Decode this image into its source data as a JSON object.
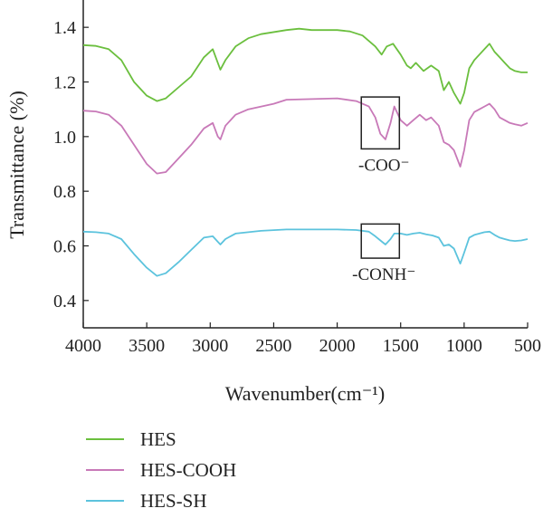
{
  "chart_data": {
    "type": "line",
    "title": "",
    "xlabel": "Wavenumber(cm⁻¹)",
    "ylabel": "Transmittance (%)",
    "xlim": [
      4000,
      500
    ],
    "ylim": [
      0.3,
      1.5
    ],
    "x_ticks": [
      4000,
      3500,
      3000,
      2500,
      2000,
      1500,
      1000,
      500
    ],
    "x_tick_labels": [
      "4000",
      "3500",
      "3000",
      "2500",
      "2000",
      "1500",
      "1000",
      "500"
    ],
    "y_ticks": [
      0.4,
      0.6,
      0.8,
      1.0,
      1.2,
      1.4
    ],
    "y_tick_labels": [
      "0.4",
      "0.6",
      "0.8",
      "1.0",
      "1.2",
      "1.4"
    ],
    "grid": false,
    "legend_position": "bottom-left",
    "series": [
      {
        "name": "HES",
        "color": "#6bbf3e",
        "points": [
          [
            4000,
            1.335
          ],
          [
            3900,
            1.332
          ],
          [
            3800,
            1.32
          ],
          [
            3700,
            1.28
          ],
          [
            3600,
            1.2
          ],
          [
            3500,
            1.15
          ],
          [
            3420,
            1.13
          ],
          [
            3350,
            1.14
          ],
          [
            3250,
            1.18
          ],
          [
            3150,
            1.22
          ],
          [
            3050,
            1.29
          ],
          [
            2980,
            1.32
          ],
          [
            2940,
            1.27
          ],
          [
            2920,
            1.245
          ],
          [
            2880,
            1.28
          ],
          [
            2800,
            1.33
          ],
          [
            2700,
            1.36
          ],
          [
            2600,
            1.375
          ],
          [
            2400,
            1.39
          ],
          [
            2300,
            1.395
          ],
          [
            2200,
            1.39
          ],
          [
            2000,
            1.39
          ],
          [
            1900,
            1.385
          ],
          [
            1800,
            1.37
          ],
          [
            1700,
            1.33
          ],
          [
            1650,
            1.3
          ],
          [
            1610,
            1.33
          ],
          [
            1560,
            1.34
          ],
          [
            1500,
            1.3
          ],
          [
            1450,
            1.26
          ],
          [
            1420,
            1.25
          ],
          [
            1380,
            1.27
          ],
          [
            1320,
            1.24
          ],
          [
            1260,
            1.26
          ],
          [
            1200,
            1.24
          ],
          [
            1160,
            1.17
          ],
          [
            1120,
            1.2
          ],
          [
            1080,
            1.16
          ],
          [
            1030,
            1.12
          ],
          [
            1000,
            1.16
          ],
          [
            960,
            1.25
          ],
          [
            920,
            1.28
          ],
          [
            880,
            1.3
          ],
          [
            840,
            1.32
          ],
          [
            800,
            1.34
          ],
          [
            760,
            1.31
          ],
          [
            720,
            1.29
          ],
          [
            680,
            1.27
          ],
          [
            640,
            1.25
          ],
          [
            600,
            1.24
          ],
          [
            550,
            1.235
          ],
          [
            500,
            1.235
          ]
        ]
      },
      {
        "name": "HES-COOH",
        "color": "#c879b8",
        "points": [
          [
            4000,
            1.095
          ],
          [
            3900,
            1.092
          ],
          [
            3800,
            1.08
          ],
          [
            3700,
            1.04
          ],
          [
            3600,
            0.97
          ],
          [
            3500,
            0.9
          ],
          [
            3420,
            0.865
          ],
          [
            3350,
            0.87
          ],
          [
            3250,
            0.92
          ],
          [
            3150,
            0.97
          ],
          [
            3050,
            1.03
          ],
          [
            2980,
            1.05
          ],
          [
            2940,
            1.0
          ],
          [
            2920,
            0.99
          ],
          [
            2880,
            1.04
          ],
          [
            2800,
            1.08
          ],
          [
            2700,
            1.1
          ],
          [
            2500,
            1.12
          ],
          [
            2400,
            1.135
          ],
          [
            2000,
            1.14
          ],
          [
            1850,
            1.13
          ],
          [
            1750,
            1.11
          ],
          [
            1700,
            1.07
          ],
          [
            1660,
            1.01
          ],
          [
            1620,
            0.99
          ],
          [
            1580,
            1.05
          ],
          [
            1550,
            1.11
          ],
          [
            1500,
            1.06
          ],
          [
            1450,
            1.04
          ],
          [
            1400,
            1.06
          ],
          [
            1350,
            1.08
          ],
          [
            1300,
            1.06
          ],
          [
            1260,
            1.07
          ],
          [
            1200,
            1.04
          ],
          [
            1160,
            0.98
          ],
          [
            1120,
            0.97
          ],
          [
            1080,
            0.95
          ],
          [
            1030,
            0.89
          ],
          [
            1000,
            0.95
          ],
          [
            960,
            1.06
          ],
          [
            920,
            1.09
          ],
          [
            880,
            1.1
          ],
          [
            840,
            1.11
          ],
          [
            800,
            1.12
          ],
          [
            760,
            1.1
          ],
          [
            720,
            1.07
          ],
          [
            680,
            1.06
          ],
          [
            640,
            1.05
          ],
          [
            600,
            1.045
          ],
          [
            550,
            1.04
          ],
          [
            500,
            1.05
          ]
        ]
      },
      {
        "name": "HES-SH",
        "color": "#5cc3dd",
        "points": [
          [
            4000,
            0.652
          ],
          [
            3900,
            0.65
          ],
          [
            3800,
            0.645
          ],
          [
            3700,
            0.625
          ],
          [
            3600,
            0.57
          ],
          [
            3500,
            0.52
          ],
          [
            3420,
            0.49
          ],
          [
            3350,
            0.5
          ],
          [
            3250,
            0.54
          ],
          [
            3150,
            0.585
          ],
          [
            3050,
            0.63
          ],
          [
            2980,
            0.635
          ],
          [
            2940,
            0.615
          ],
          [
            2920,
            0.605
          ],
          [
            2880,
            0.625
          ],
          [
            2800,
            0.645
          ],
          [
            2600,
            0.655
          ],
          [
            2400,
            0.66
          ],
          [
            2000,
            0.66
          ],
          [
            1850,
            0.658
          ],
          [
            1750,
            0.652
          ],
          [
            1700,
            0.635
          ],
          [
            1660,
            0.62
          ],
          [
            1620,
            0.605
          ],
          [
            1580,
            0.625
          ],
          [
            1550,
            0.645
          ],
          [
            1500,
            0.645
          ],
          [
            1450,
            0.64
          ],
          [
            1400,
            0.645
          ],
          [
            1350,
            0.648
          ],
          [
            1300,
            0.642
          ],
          [
            1250,
            0.638
          ],
          [
            1200,
            0.63
          ],
          [
            1160,
            0.6
          ],
          [
            1120,
            0.605
          ],
          [
            1080,
            0.59
          ],
          [
            1030,
            0.535
          ],
          [
            1000,
            0.575
          ],
          [
            960,
            0.63
          ],
          [
            920,
            0.64
          ],
          [
            880,
            0.645
          ],
          [
            840,
            0.65
          ],
          [
            800,
            0.652
          ],
          [
            760,
            0.64
          ],
          [
            720,
            0.63
          ],
          [
            680,
            0.625
          ],
          [
            640,
            0.62
          ],
          [
            600,
            0.618
          ],
          [
            550,
            0.62
          ],
          [
            500,
            0.625
          ]
        ]
      }
    ],
    "annotations": [
      {
        "text": "-COO⁻",
        "box_x_range": [
          1810,
          1510
        ],
        "box_y_range": [
          0.955,
          1.145
        ]
      },
      {
        "text": "-CONH⁻",
        "box_x_range": [
          1810,
          1510
        ],
        "box_y_range": [
          0.555,
          0.68
        ]
      }
    ]
  }
}
